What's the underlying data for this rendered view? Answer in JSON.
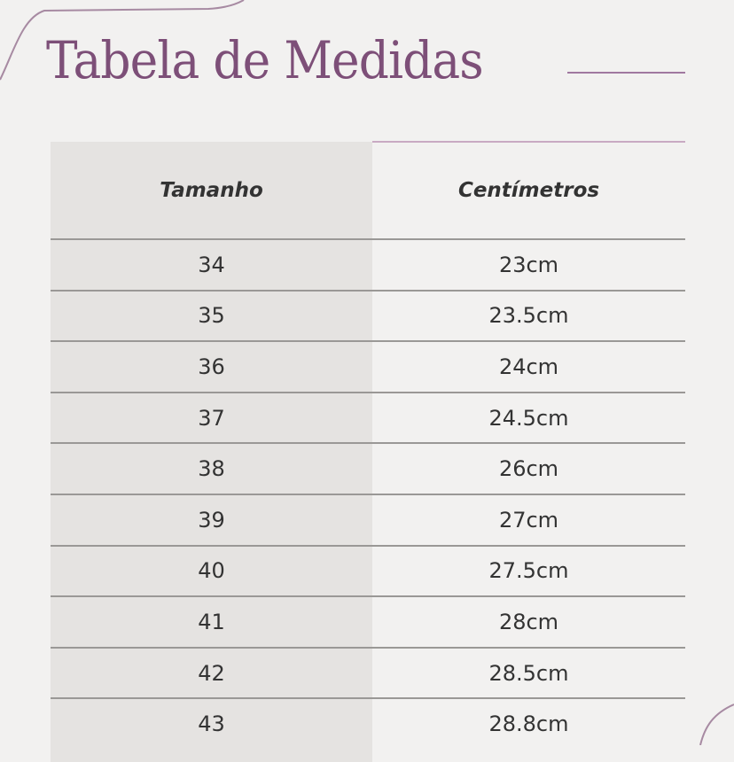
{
  "title": "Tabela de Medidas",
  "accent_color": "#7d4f78",
  "table": {
    "headers": [
      "Tamanho",
      "Centímetros"
    ],
    "rows": [
      [
        "34",
        "23cm"
      ],
      [
        "35",
        "23.5cm"
      ],
      [
        "36",
        "24cm"
      ],
      [
        "37",
        "24.5cm"
      ],
      [
        "38",
        "26cm"
      ],
      [
        "39",
        "27cm"
      ],
      [
        "40",
        "27.5cm"
      ],
      [
        "41",
        "28cm"
      ],
      [
        "42",
        "28.5cm"
      ],
      [
        "43",
        "28.8cm"
      ]
    ]
  }
}
